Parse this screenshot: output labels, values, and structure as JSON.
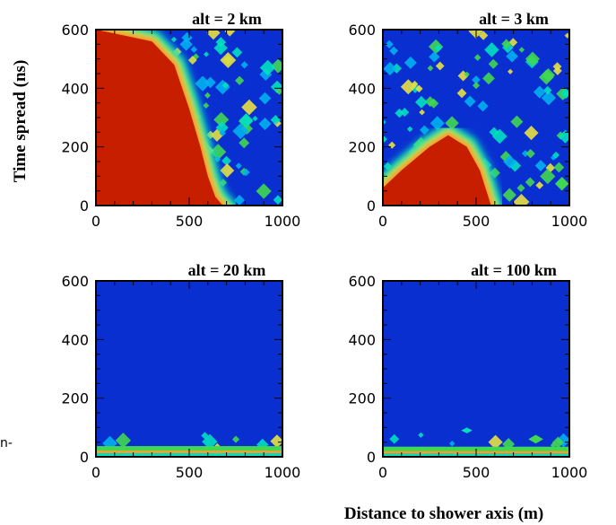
{
  "chart_data": {
    "type": "heatmap",
    "ylabel": "Time spread (ns)",
    "xlabel": "Distance to shower axis (m)",
    "side_fragment": "n-",
    "colormap": [
      "#0a2fd0",
      "#00b0f0",
      "#00e0c0",
      "#40d850",
      "#e8e040",
      "#f0a030",
      "#e05020",
      "#c81e00"
    ],
    "xlim": [
      0,
      1000
    ],
    "ylim": [
      0,
      600
    ],
    "xticks": [
      "0",
      "500",
      "1000"
    ],
    "yticks": [
      "0",
      "200",
      "400",
      "600"
    ],
    "grid": false,
    "panels": [
      {
        "title": "alt = 2 km",
        "description": "Saturated (red) region covers small distances up to ~500 m over most of the time range; noisy green/cyan boundary beyond.",
        "red_boundary_m": [
          [
            0,
            600
          ],
          [
            150,
            580
          ],
          [
            300,
            560
          ],
          [
            420,
            480
          ],
          [
            500,
            330
          ],
          [
            560,
            200
          ],
          [
            600,
            100
          ],
          [
            640,
            30
          ],
          [
            680,
            0
          ]
        ]
      },
      {
        "title": "alt = 3 km",
        "description": "Red region limited to below ~250 ns and ~550 m; scattered cyan/green points up to 600 ns and 1000 m.",
        "red_boundary_m": [
          [
            0,
            60
          ],
          [
            100,
            120
          ],
          [
            250,
            200
          ],
          [
            350,
            240
          ],
          [
            450,
            200
          ],
          [
            520,
            120
          ],
          [
            560,
            40
          ],
          [
            580,
            0
          ]
        ]
      },
      {
        "title": "alt = 20 km",
        "description": "Almost uniformly low (blue); thin warm band near t = 0 at all distances.",
        "red_boundary_m": [
          [
            0,
            12
          ],
          [
            1000,
            12
          ]
        ]
      },
      {
        "title": "alt = 100 km",
        "description": "Almost uniformly low (blue); thin warm band near t = 0 and a few isolated spots.",
        "red_boundary_m": [
          [
            0,
            10
          ],
          [
            1000,
            10
          ]
        ]
      }
    ]
  }
}
